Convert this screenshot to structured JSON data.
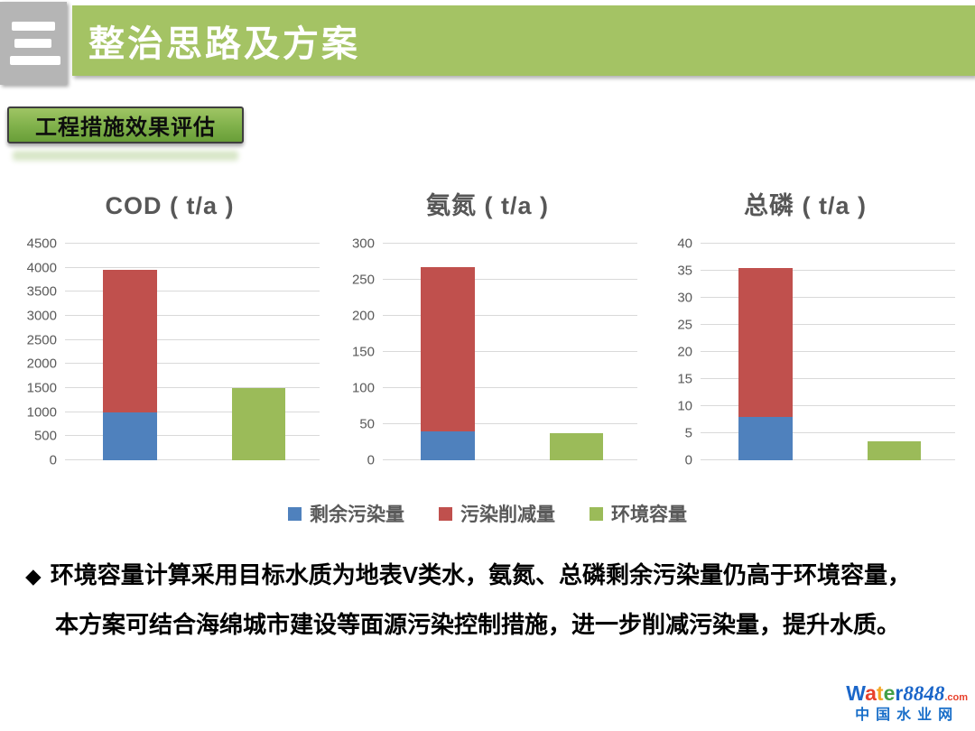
{
  "header": {
    "title": "整治思路及方案",
    "banner_color": "#a4c364",
    "icon_box_color": "#b5b5b5"
  },
  "badge": {
    "label": "工程措施效果评估"
  },
  "chart_data": [
    {
      "type": "stacked-bar",
      "title": "COD ( t/a )",
      "ylim": [
        0,
        4500
      ],
      "ytick_step": 500,
      "grid": true,
      "legend_position": "bottom-shared",
      "bars": [
        {
          "segments": [
            {
              "name": "剩余污染量",
              "value": 1000,
              "color": "#4F81BD"
            },
            {
              "name": "污染削减量",
              "value": 2950,
              "color": "#C0504D"
            }
          ]
        },
        {
          "segments": [
            {
              "name": "环境容量",
              "value": 1500,
              "color": "#9BBB59"
            }
          ]
        }
      ]
    },
    {
      "type": "stacked-bar",
      "title": "氨氮 ( t/a )",
      "ylim": [
        0,
        300
      ],
      "ytick_step": 50,
      "grid": true,
      "legend_position": "bottom-shared",
      "bars": [
        {
          "segments": [
            {
              "name": "剩余污染量",
              "value": 40,
              "color": "#4F81BD"
            },
            {
              "name": "污染削减量",
              "value": 228,
              "color": "#C0504D"
            }
          ]
        },
        {
          "segments": [
            {
              "name": "环境容量",
              "value": 38,
              "color": "#9BBB59"
            }
          ]
        }
      ]
    },
    {
      "type": "stacked-bar",
      "title": "总磷 ( t/a )",
      "ylim": [
        0,
        40
      ],
      "ytick_step": 5,
      "grid": true,
      "legend_position": "bottom-shared",
      "bars": [
        {
          "segments": [
            {
              "name": "剩余污染量",
              "value": 8,
              "color": "#4F81BD"
            },
            {
              "name": "污染削减量",
              "value": 27.5,
              "color": "#C0504D"
            }
          ]
        },
        {
          "segments": [
            {
              "name": "环境容量",
              "value": 3.5,
              "color": "#9BBB59"
            }
          ]
        }
      ]
    }
  ],
  "legend": {
    "items": [
      {
        "label": "剩余污染量",
        "color": "#4F81BD"
      },
      {
        "label": "污染削减量",
        "color": "#C0504D"
      },
      {
        "label": "环境容量",
        "color": "#9BBB59"
      }
    ]
  },
  "conclusion": {
    "bullet": "◆",
    "line1": "环境容量计算采用目标水质为地表V类水，氨氮、总磷剩余污染量仍高于环境容量，",
    "line2": "本方案可结合海绵城市建设等面源污染控制措施，进一步削减污染量，提升水质。"
  },
  "watermark": {
    "letters": [
      {
        "ch": "W",
        "color": "#1b66c9"
      },
      {
        "ch": "a",
        "color": "#e8412c"
      },
      {
        "ch": "t",
        "color": "#f5a623"
      },
      {
        "ch": "e",
        "color": "#43a047"
      },
      {
        "ch": "r",
        "color": "#1b66c9"
      }
    ],
    "number": "8848",
    "domain_suffix": ".com",
    "subtitle": "中国水业网"
  }
}
